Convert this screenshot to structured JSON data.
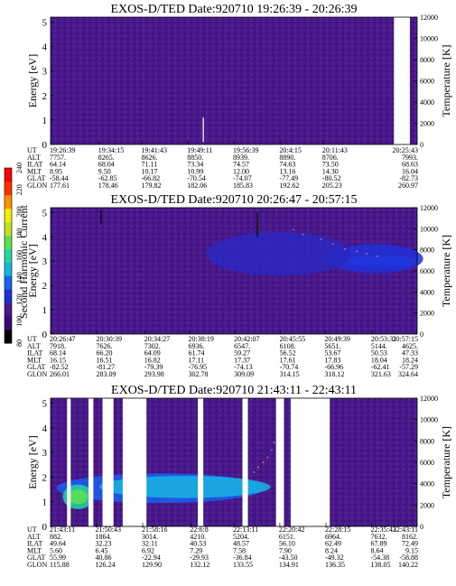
{
  "colors": {
    "background": "#4a1a8c",
    "axis": "#000000",
    "bar_min": "#000000",
    "bar_max": "#ff0000"
  },
  "colorbar": {
    "label": "Second Harmonic Current",
    "ticks": [
      "80",
      "100",
      "120",
      "140",
      "160",
      "180",
      "200",
      "220",
      "240"
    ],
    "range": [
      80,
      240
    ],
    "colors": [
      "#000000",
      "#3c0a6e",
      "#4a1a8c",
      "#2030d8",
      "#1a60f0",
      "#18b4e0",
      "#20d8a0",
      "#60e050",
      "#c0e020",
      "#f0f000",
      "#ff9000",
      "#ff3000",
      "#ff0000"
    ]
  },
  "ephemeris_row_labels": [
    "UT",
    "ALT",
    "ILAT",
    "MLT",
    "GLAT",
    "GLON"
  ],
  "chart_data": [
    {
      "type": "heatmap",
      "title": "EXOS-D/TED   Date:920710   19:26:39 - 20:26:39",
      "ylabel": "Energy [eV]",
      "y2label": "Temperature [K]",
      "ylim": [
        0,
        5.2
      ],
      "y2lim": [
        0,
        12000
      ],
      "yticks": [
        "0",
        "1",
        "2",
        "3",
        "4",
        "5"
      ],
      "y2ticks": [
        "0",
        "2000",
        "4000",
        "6000",
        "8000",
        "10000",
        "12000"
      ],
      "xlim": [
        0,
        60
      ],
      "xticks": [
        0,
        7.95,
        15.0,
        22.5,
        30.0,
        37.6,
        44.6,
        60.0
      ],
      "gaps": [
        [
          56.2,
          58.8
        ]
      ],
      "blobs": [],
      "dots": [],
      "spikes": [
        {
          "x": 25.0,
          "y0": 0.1,
          "y1": 1.1,
          "color": "#d8d8d8"
        }
      ],
      "ephemeris": [
        [
          "19:26:39",
          "19:34:15",
          "19:41:43",
          "19:49:11",
          "19:56:39",
          "20:4:15",
          "20:11:43",
          "20:25:43"
        ],
        [
          "7757.",
          "8265.",
          "8626.",
          "8850.",
          "8939.",
          "8890.",
          "8706.",
          "7993."
        ],
        [
          "64.14",
          "68.04",
          "71.11",
          "73.34",
          "74.57",
          "74.63",
          "73.50",
          "68.63"
        ],
        [
          "8.95",
          "9.50",
          "10.17",
          "10.99",
          "12.00",
          "13.16",
          "14.30",
          "16.04"
        ],
        [
          "-58.44",
          "-62.85",
          "-66.82",
          "-70.54",
          "-74.07",
          "-77.49",
          "-80.52",
          "-82.73"
        ],
        [
          "177.61",
          "178.46",
          "179.82",
          "182.06",
          "185.83",
          "192.62",
          "205.23",
          "260.97"
        ]
      ]
    },
    {
      "type": "heatmap",
      "title": "EXOS-D/TED   Date:920710   20:26:47 - 20:57:15",
      "ylabel": "Energy [eV]",
      "y2label": "Temperature [K]",
      "ylim": [
        0,
        5.2
      ],
      "y2lim": [
        0,
        12000
      ],
      "yticks": [
        "0",
        "1",
        "2",
        "3",
        "4",
        "5"
      ],
      "y2ticks": [
        "0",
        "2000",
        "4000",
        "6000",
        "8000",
        "10000",
        "12000"
      ],
      "xlim": [
        0,
        30.5
      ],
      "xticks": [
        0,
        3.87,
        7.87,
        11.53,
        15.33,
        19.13,
        22.87,
        26.73,
        30.47
      ],
      "gaps": [],
      "blobs": [
        {
          "x": 27.5,
          "y": 3.0,
          "rx": 3.0,
          "ry": 0.25,
          "color": "#1a60f0"
        },
        {
          "x": 27.0,
          "y": 3.1,
          "rx": 4.0,
          "ry": 0.6,
          "color": "#2030d8"
        },
        {
          "x": 19.0,
          "y": 3.3,
          "rx": 6.0,
          "ry": 0.9,
          "color": "#2a28c0"
        }
      ],
      "dots": [
        [
          22.5,
          3.9
        ],
        [
          23.5,
          3.7
        ],
        [
          24.5,
          3.5
        ],
        [
          25.5,
          3.4
        ],
        [
          26.3,
          3.3
        ],
        [
          27.2,
          3.2
        ],
        [
          21.0,
          4.1
        ],
        [
          20.2,
          4.3
        ]
      ],
      "spikes": [
        {
          "x": 4.2,
          "y0": 4.55,
          "y1": 5.1,
          "color": "#101010"
        },
        {
          "x": 17.2,
          "y0": 4.0,
          "y1": 5.0,
          "color": "#101010"
        }
      ],
      "ephemeris": [
        [
          "20:26:47",
          "20:30:39",
          "20:34:27",
          "20:38:19",
          "20:42:07",
          "20:45:55",
          "20:49:39",
          "20:53:31",
          "20:57:15"
        ],
        [
          "7918.",
          "7626.",
          "7302.",
          "6936.",
          "6547.",
          "6108.",
          "5651.",
          "5144.",
          "4625."
        ],
        [
          "68.14",
          "66.20",
          "64.09",
          "61.74",
          "59.27",
          "56.52",
          "53.67",
          "50.53",
          "47.33"
        ],
        [
          "16.15",
          "16.51",
          "16.82",
          "17.11",
          "17.37",
          "17.61",
          "17.83",
          "18.04",
          "18.24"
        ],
        [
          "-82.52",
          "-81.27",
          "-79.39",
          "-76.95",
          "-74.13",
          "-70.74",
          "-66.96",
          "-62.41",
          "-57.29"
        ],
        [
          "266.01",
          "283.09",
          "293.98",
          "302.78",
          "309.09",
          "314.15",
          "318.12",
          "321.63",
          "324.64"
        ]
      ]
    },
    {
      "type": "heatmap",
      "title": "EXOS-D/TED   Date:920710   21:43:11 - 22:43:11",
      "ylabel": "Energy [eV]",
      "y2label": "Temperature [K]",
      "ylim": [
        0,
        5.2
      ],
      "y2lim": [
        0,
        12000
      ],
      "yticks": [
        "0",
        "1",
        "2",
        "3",
        "4",
        "5"
      ],
      "y2ticks": [
        "0",
        "2000",
        "4000",
        "6000",
        "8000",
        "10000",
        "12000"
      ],
      "xlim": [
        0,
        60
      ],
      "xticks": [
        0,
        7.47,
        15.08,
        22.95,
        30.0,
        37.52,
        45.07,
        52.53,
        60.0
      ],
      "gaps": [
        [
          2.7,
          3.3
        ],
        [
          6.2,
          7.0
        ],
        [
          8.5,
          10.3
        ],
        [
          11.8,
          15.7
        ],
        [
          24.1,
          25.0
        ],
        [
          31.4,
          32.3
        ],
        [
          36.9,
          38.2
        ],
        [
          39.3,
          45.7
        ]
      ],
      "blobs": [
        {
          "x": 18.0,
          "y": 1.55,
          "rx": 17.0,
          "ry": 0.6,
          "color": "#1a60f0"
        },
        {
          "x": 22.0,
          "y": 1.6,
          "rx": 14.0,
          "ry": 0.45,
          "color": "#18b4e0"
        },
        {
          "x": 4.5,
          "y": 1.2,
          "rx": 2.5,
          "ry": 0.5,
          "color": "#20d8a0"
        },
        {
          "x": 4.5,
          "y": 1.2,
          "rx": 1.6,
          "ry": 0.3,
          "color": "#60e050"
        }
      ],
      "dots": [
        [
          34.0,
          2.4
        ],
        [
          34.8,
          2.6
        ],
        [
          35.5,
          2.8
        ],
        [
          36.2,
          3.1
        ],
        [
          33.3,
          2.2
        ],
        [
          36.6,
          3.4
        ]
      ],
      "spikes": [],
      "ephemeris": [
        [
          "21:43:11",
          "21:50:43",
          "21:58:16",
          "22:6:8",
          "22:13:11",
          "22:20:42",
          "22:28:15",
          "22:35:43",
          "22:43:11"
        ],
        [
          "882.",
          "1864.",
          "3014.",
          "4210.",
          "5204.",
          "6151.",
          "6964.",
          "7632.",
          "8162."
        ],
        [
          "49.64",
          "32.23",
          "32.11",
          "40.53",
          "48.57",
          "56.10",
          "62.49",
          "67.89",
          "72.49"
        ],
        [
          "5.60",
          "6.45",
          "6.92",
          "7.29",
          "7.58",
          "7.90",
          "8.24",
          "8.64",
          "9.15"
        ],
        [
          "55.99",
          "40.86",
          "-22.94",
          "-29.93",
          "-36.84",
          "-43.50",
          "-49.32",
          "-54.38",
          "-58.88"
        ],
        [
          "115.88",
          "126.24",
          "129.90",
          "132.12",
          "133.55",
          "134.91",
          "136.35",
          "138.05",
          "140.22"
        ]
      ]
    }
  ]
}
